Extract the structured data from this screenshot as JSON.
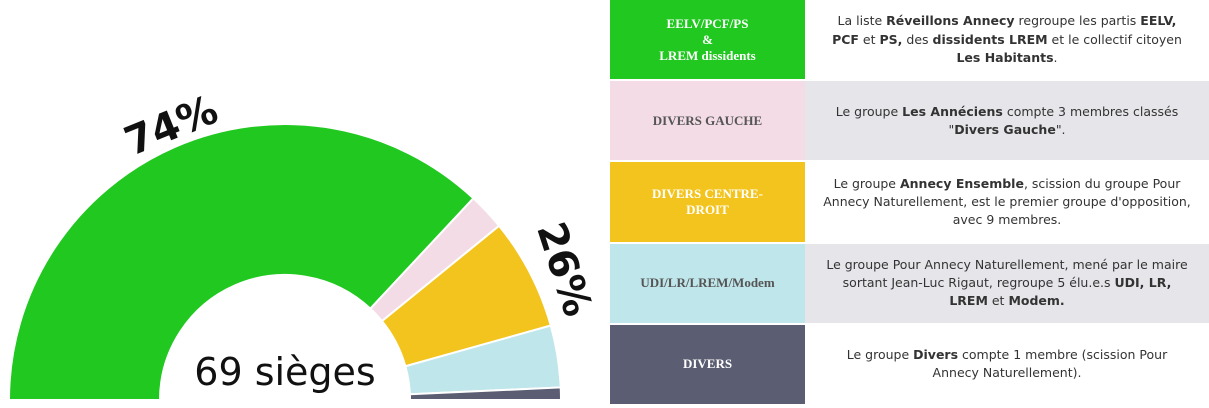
{
  "chart_data": {
    "type": "pie",
    "center_label": "69 sièges",
    "categories": [
      "EELV/PCF/PS\n&\nLREM dissidents",
      "DIVERS GAUCHE",
      "DIVERS CENTRE-\nDROIT",
      "UDI/LR/LREM/Modem",
      "DIVERS"
    ],
    "values": [
      51,
      3,
      9,
      5,
      1
    ],
    "colors": [
      "#20c820",
      "#f3dce6",
      "#f3c41e",
      "#bfe6eb",
      "#5b5e72"
    ],
    "annotations": [
      "74%",
      "26%"
    ]
  },
  "table": {
    "rows": [
      {
        "label": "EELV/PCF/PS\n&\nLREM dissidents",
        "description": [
          {
            "text": "La liste "
          },
          {
            "text": "Réveillons Annecy",
            "bold": true
          },
          {
            "text": " regroupe les partis "
          },
          {
            "text": "EELV, PCF",
            "bold": true
          },
          {
            "text": " et "
          },
          {
            "text": "PS,",
            "bold": true
          },
          {
            "text": " des "
          },
          {
            "text": "dissidents LREM",
            "bold": true
          },
          {
            "text": " et le collectif citoyen "
          },
          {
            "text": "Les Habitants",
            "bold": true
          },
          {
            "text": "."
          }
        ]
      },
      {
        "label": "DIVERS GAUCHE",
        "description": [
          {
            "text": "Le groupe "
          },
          {
            "text": "Les Annéciens",
            "bold": true
          },
          {
            "text": " compte 3 membres classés \""
          },
          {
            "text": "Divers Gauche",
            "bold": true
          },
          {
            "text": "\"."
          }
        ]
      },
      {
        "label": "DIVERS CENTRE-\nDROIT",
        "description": [
          {
            "text": "Le groupe "
          },
          {
            "text": "Annecy Ensemble",
            "bold": true
          },
          {
            "text": ", scission du groupe Pour Annecy Naturellement, est le premier groupe d'opposition, avec 9 membres."
          }
        ]
      },
      {
        "label": "UDI/LR/LREM/Modem",
        "description": [
          {
            "text": "Le groupe Pour Annecy Naturellement, mené par le maire sortant Jean-Luc Rigaut, regroupe 5 élu.e.s "
          },
          {
            "text": "UDI, LR, LREM",
            "bold": true
          },
          {
            "text": " et "
          },
          {
            "text": "Modem.",
            "bold": true
          }
        ]
      },
      {
        "label": "DIVERS",
        "description": [
          {
            "text": "Le groupe "
          },
          {
            "text": "Divers",
            "bold": true
          },
          {
            "text": " compte 1 membre (scission Pour Annecy Naturellement)."
          }
        ]
      }
    ]
  }
}
